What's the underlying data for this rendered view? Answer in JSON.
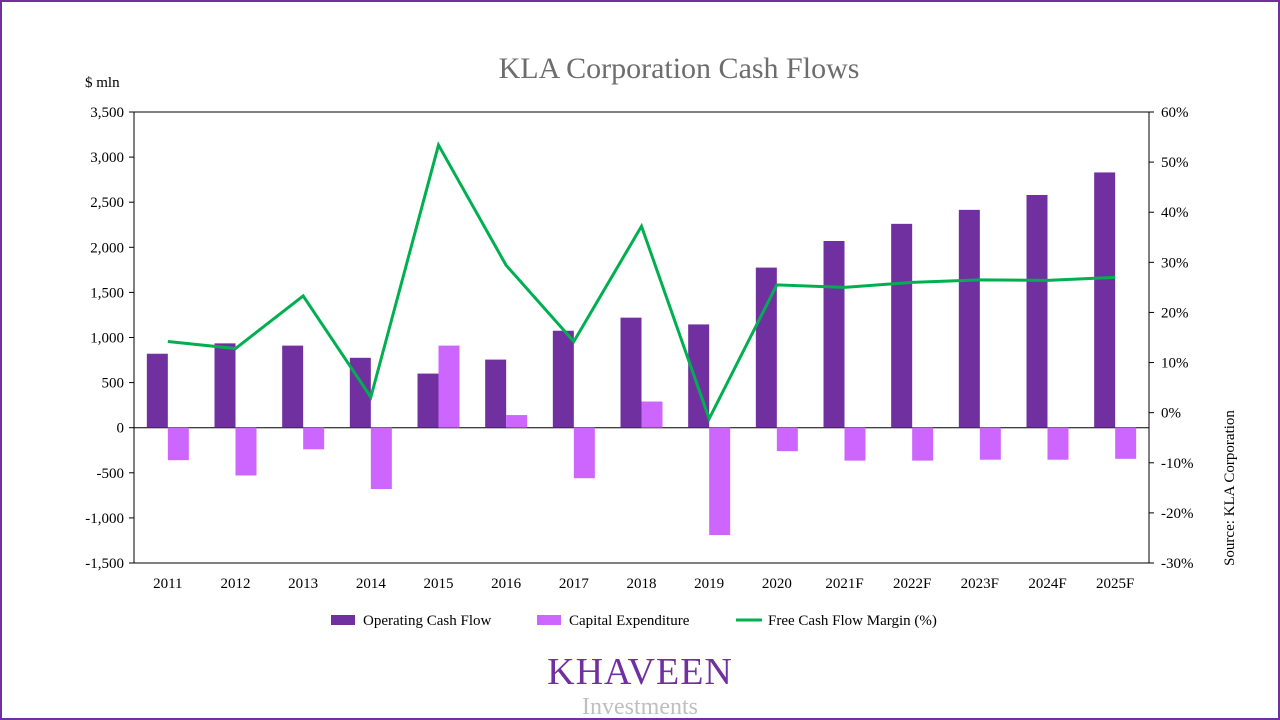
{
  "chart_data": {
    "type": "bar",
    "title": "KLA Corporation Cash Flows",
    "ylabel": "$ mln",
    "ylim": [
      -1500,
      3500
    ],
    "y2lim": [
      -30,
      60
    ],
    "y_ticks": [
      "3,500",
      "3,000",
      "2,500",
      "2,000",
      "1,500",
      "1,000",
      "500",
      "0",
      "-500",
      "-1,000",
      "-1,500"
    ],
    "y2_ticks": [
      "60%",
      "50%",
      "40%",
      "30%",
      "20%",
      "10%",
      "0%",
      "-10%",
      "-20%",
      "-30%"
    ],
    "categories": [
      "2011",
      "2012",
      "2013",
      "2014",
      "2015",
      "2016",
      "2017",
      "2018",
      "2019",
      "2020",
      "2021F",
      "2022F",
      "2023F",
      "2024F",
      "2025F"
    ],
    "series": [
      {
        "name": "Operating Cash Flow",
        "type": "bar",
        "color": "#7030a0",
        "values": [
          820,
          935,
          910,
          775,
          600,
          755,
          1075,
          1220,
          1145,
          1775,
          2070,
          2260,
          2415,
          2580,
          2830
        ]
      },
      {
        "name": "Capital Expenditure",
        "type": "bar",
        "color": "#cc66ff",
        "values": [
          -360,
          -530,
          -240,
          -680,
          910,
          140,
          -560,
          290,
          -1190,
          -260,
          -365,
          -365,
          -355,
          -355,
          -345
        ]
      },
      {
        "name": "Free Cash Flow Margin (%)",
        "type": "line",
        "axis": "right",
        "color": "#00b050",
        "values": [
          14.2,
          12.8,
          23.3,
          3.1,
          53.4,
          29.4,
          14.2,
          37.2,
          -1.2,
          25.5,
          25.0,
          26.0,
          26.5,
          26.4,
          27.0
        ]
      }
    ],
    "legend_position": "bottom",
    "grid": false
  },
  "source_note": "Source: KLA Corporation",
  "logo": {
    "main": "KHAVEEN",
    "sub": "Investments"
  }
}
